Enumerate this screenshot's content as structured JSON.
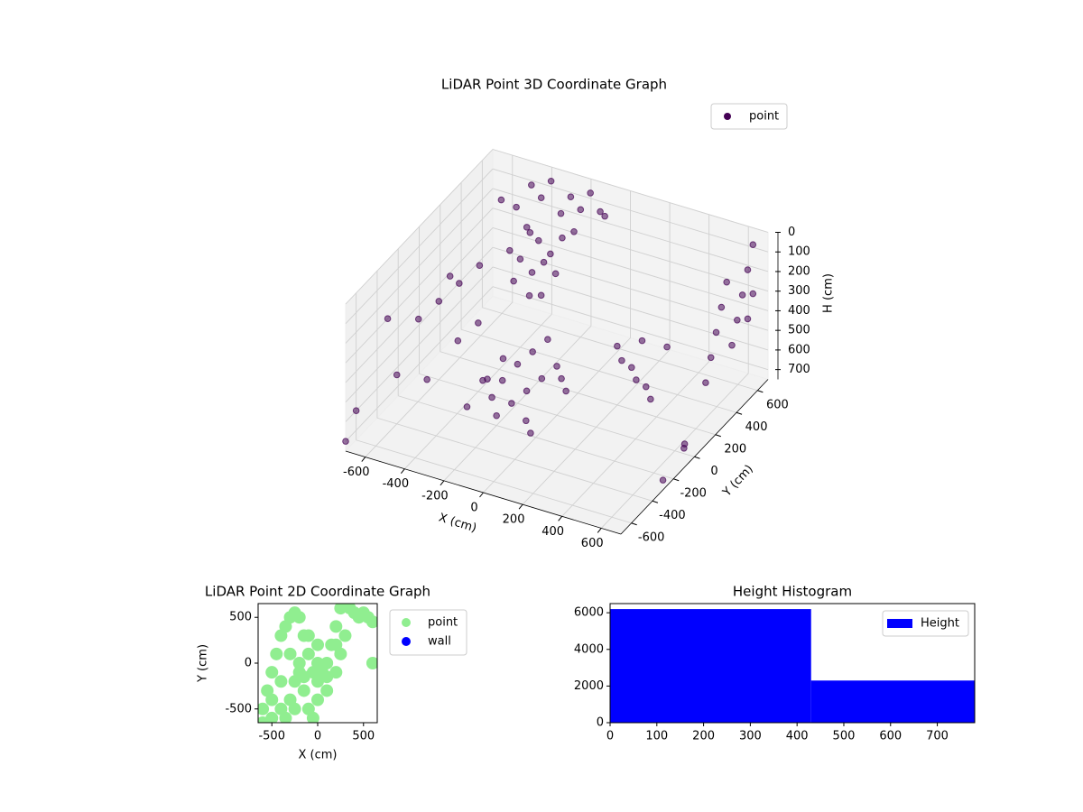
{
  "chart_data": [
    {
      "type": "scatter3d",
      "title": "LiDAR Point 3D Coordinate Graph",
      "xlabel": "X (cm)",
      "ylabel": "Y (cm)",
      "zlabel": "H (cm)",
      "xlim": [
        -700,
        700
      ],
      "ylim": [
        -700,
        700
      ],
      "zlim": [
        750,
        0
      ],
      "xticks": [
        -600,
        -400,
        -200,
        0,
        200,
        400,
        600
      ],
      "yticks": [
        -600,
        -400,
        -200,
        0,
        200,
        400,
        600
      ],
      "zticks": [
        0,
        100,
        200,
        300,
        400,
        500,
        600,
        700
      ],
      "grid": true,
      "legend": "upper right",
      "series": [
        {
          "name": "point",
          "color": "#440154",
          "x": [
            -450,
            -400,
            -350,
            -300,
            -250,
            -200,
            -150,
            -420,
            -360,
            -300,
            -240,
            -180,
            -400,
            -340,
            -280,
            -220,
            -380,
            -300,
            -240,
            -100,
            -50,
            -500,
            -550,
            -300,
            -250,
            -200,
            -150,
            -100,
            -50,
            0,
            -200,
            -150,
            -100,
            -250,
            -300,
            50,
            100,
            -50,
            0,
            -350,
            -350,
            200,
            250,
            300,
            350,
            400,
            450,
            300,
            400,
            650,
            650,
            650,
            650,
            650,
            650,
            650,
            650,
            650,
            650,
            650,
            650,
            -700,
            -650,
            -600,
            -550,
            -500,
            -600,
            -700,
            -500,
            -450,
            -400,
            -400,
            -350,
            -650,
            -700,
            700,
            700,
            650
          ],
          "y": [
            600,
            600,
            600,
            600,
            600,
            600,
            600,
            500,
            500,
            500,
            500,
            500,
            400,
            400,
            400,
            400,
            300,
            300,
            300,
            600,
            550,
            550,
            500,
            -100,
            -150,
            -200,
            -150,
            -100,
            -50,
            0,
            0,
            50,
            100,
            -50,
            50,
            -50,
            -100,
            -200,
            -250,
            -50,
            -200,
            200,
            150,
            150,
            100,
            100,
            50,
            250,
            300,
            650,
            600,
            550,
            500,
            450,
            400,
            350,
            300,
            250,
            200,
            650,
            600,
            -300,
            -100,
            0,
            100,
            200,
            -400,
            -600,
            -300,
            -100,
            0,
            300,
            400,
            200,
            -700,
            -300,
            -100,
            0
          ],
          "z": [
            50,
            100,
            0,
            150,
            50,
            100,
            0,
            200,
            250,
            300,
            200,
            150,
            300,
            350,
            280,
            320,
            350,
            400,
            380,
            80,
            60,
            150,
            100,
            600,
            650,
            700,
            650,
            600,
            550,
            500,
            550,
            500,
            450,
            620,
            580,
            520,
            540,
            680,
            700,
            650,
            700,
            450,
            480,
            500,
            520,
            540,
            560,
            420,
            450,
            50,
            150,
            250,
            350,
            450,
            100,
            200,
            300,
            400,
            500,
            300,
            400,
            300,
            400,
            350,
            300,
            250,
            500,
            600,
            550,
            450,
            400,
            200,
            150,
            350,
            700,
            700,
            650,
            700
          ]
        }
      ]
    },
    {
      "type": "scatter",
      "title": "LiDAR Point 2D Coordinate Graph",
      "xlabel": "X (cm)",
      "ylabel": "Y (cm)",
      "xlim": [
        -650,
        650
      ],
      "ylim": [
        -650,
        650
      ],
      "xticks": [
        -500,
        0,
        500
      ],
      "yticks": [
        -500,
        0,
        500
      ],
      "grid": false,
      "legend": "outside upper right",
      "series": [
        {
          "name": "point",
          "color": "#90ee90",
          "x": [
            -600,
            -550,
            -500,
            -450,
            -400,
            -350,
            -300,
            -250,
            -200,
            -150,
            -100,
            -50,
            0,
            50,
            100,
            150,
            200,
            250,
            300,
            350,
            400,
            450,
            500,
            550,
            600,
            -600,
            -500,
            -400,
            -300,
            -250,
            -200,
            -150,
            -100,
            -50,
            0,
            100,
            200,
            250,
            300,
            200,
            0,
            -100,
            -300,
            -400,
            -500,
            600,
            -200,
            0,
            100,
            -350,
            -250,
            -150
          ],
          "y": [
            -500,
            -300,
            -100,
            100,
            300,
            400,
            500,
            550,
            500,
            300,
            100,
            -100,
            -200,
            -100,
            0,
            200,
            400,
            600,
            650,
            600,
            550,
            500,
            550,
            500,
            450,
            -650,
            -600,
            -500,
            -400,
            -200,
            -100,
            -300,
            -500,
            -600,
            -400,
            -300,
            -100,
            100,
            300,
            200,
            200,
            300,
            100,
            -200,
            -400,
            0,
            0,
            0,
            -150,
            -600,
            -500,
            -150
          ]
        },
        {
          "name": "wall",
          "color": "#0000ff",
          "x": [],
          "y": []
        }
      ]
    },
    {
      "type": "histogram",
      "title": "Height Histogram",
      "bins": [
        0,
        430,
        780
      ],
      "counts": [
        6200,
        2300
      ],
      "xlim": [
        0,
        780
      ],
      "ylim": [
        0,
        6500
      ],
      "xticks": [
        0,
        100,
        200,
        300,
        400,
        500,
        600,
        700
      ],
      "yticks": [
        0,
        2000,
        4000,
        6000
      ],
      "grid": false,
      "legend": "upper right",
      "series": [
        {
          "name": "Height",
          "color": "#0000ff"
        }
      ]
    }
  ]
}
